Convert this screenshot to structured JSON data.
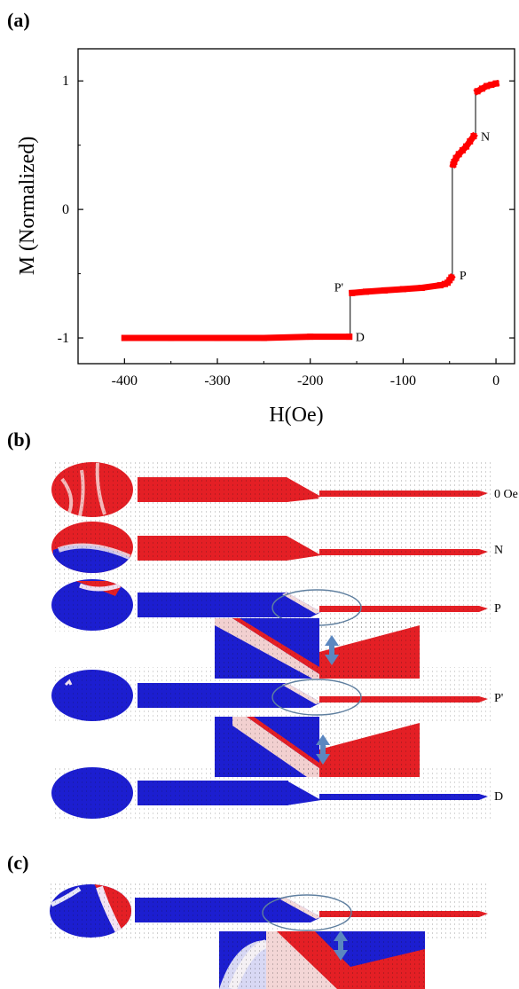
{
  "panels": {
    "a": "(a)",
    "b": "(b)",
    "c": "(c)"
  },
  "chart_data": {
    "type": "scatter",
    "xlabel": "H(Oe)",
    "ylabel": "M (Normalized)",
    "xlim": [
      -450,
      20
    ],
    "ylim": [
      -1.2,
      1.25
    ],
    "xticks": [
      -400,
      -300,
      -200,
      -100,
      0
    ],
    "yticks": [
      -1,
      0,
      1
    ],
    "grid": false,
    "series": [
      {
        "color": "#ff0000",
        "segments": [
          {
            "x": [
              0,
              -5,
              -10,
              -15,
              -20
            ],
            "y": [
              0.98,
              0.97,
              0.96,
              0.94,
              0.92
            ]
          },
          {
            "x": [
              -24,
              -28,
              -32,
              -36,
              -40,
              -43,
              -45,
              -46
            ],
            "y": [
              0.57,
              0.53,
              0.49,
              0.46,
              0.43,
              0.4,
              0.37,
              0.35
            ]
          },
          {
            "x": [
              -48,
              -50,
              -52,
              -55,
              -60,
              -80,
              -100,
              -120,
              -140,
              -155
            ],
            "y": [
              -0.53,
              -0.55,
              -0.57,
              -0.58,
              -0.59,
              -0.61,
              -0.62,
              -0.63,
              -0.64,
              -0.65
            ]
          },
          {
            "x": [
              -158,
              -200,
              -250,
              -300,
              -350,
              -400
            ],
            "y": [
              -0.99,
              -0.99,
              -1.0,
              -1.0,
              -1.0,
              -1.0
            ]
          }
        ]
      }
    ],
    "jumps": [
      {
        "x": -22,
        "y1": 0.92,
        "y2": 0.57
      },
      {
        "x": -47,
        "y1": 0.35,
        "y2": -0.53
      },
      {
        "x": -157,
        "y1": -0.65,
        "y2": -0.99
      }
    ],
    "annotations": [
      {
        "text": "N",
        "x": -22,
        "y": 0.57
      },
      {
        "text": "P",
        "x": -47,
        "y": -0.53
      },
      {
        "text": "P'",
        "x": -157,
        "y": -0.65
      },
      {
        "text": "D",
        "x": -157,
        "y": -0.99
      }
    ]
  },
  "states_b": [
    "0 Oe",
    "N",
    "P",
    "P'",
    "D"
  ],
  "colors": {
    "red": "#e41f25",
    "blue": "#1c1ed0",
    "white": "#f4f2f2",
    "ellipse": "#5f7f9f",
    "arrow": "#5b87c0"
  }
}
